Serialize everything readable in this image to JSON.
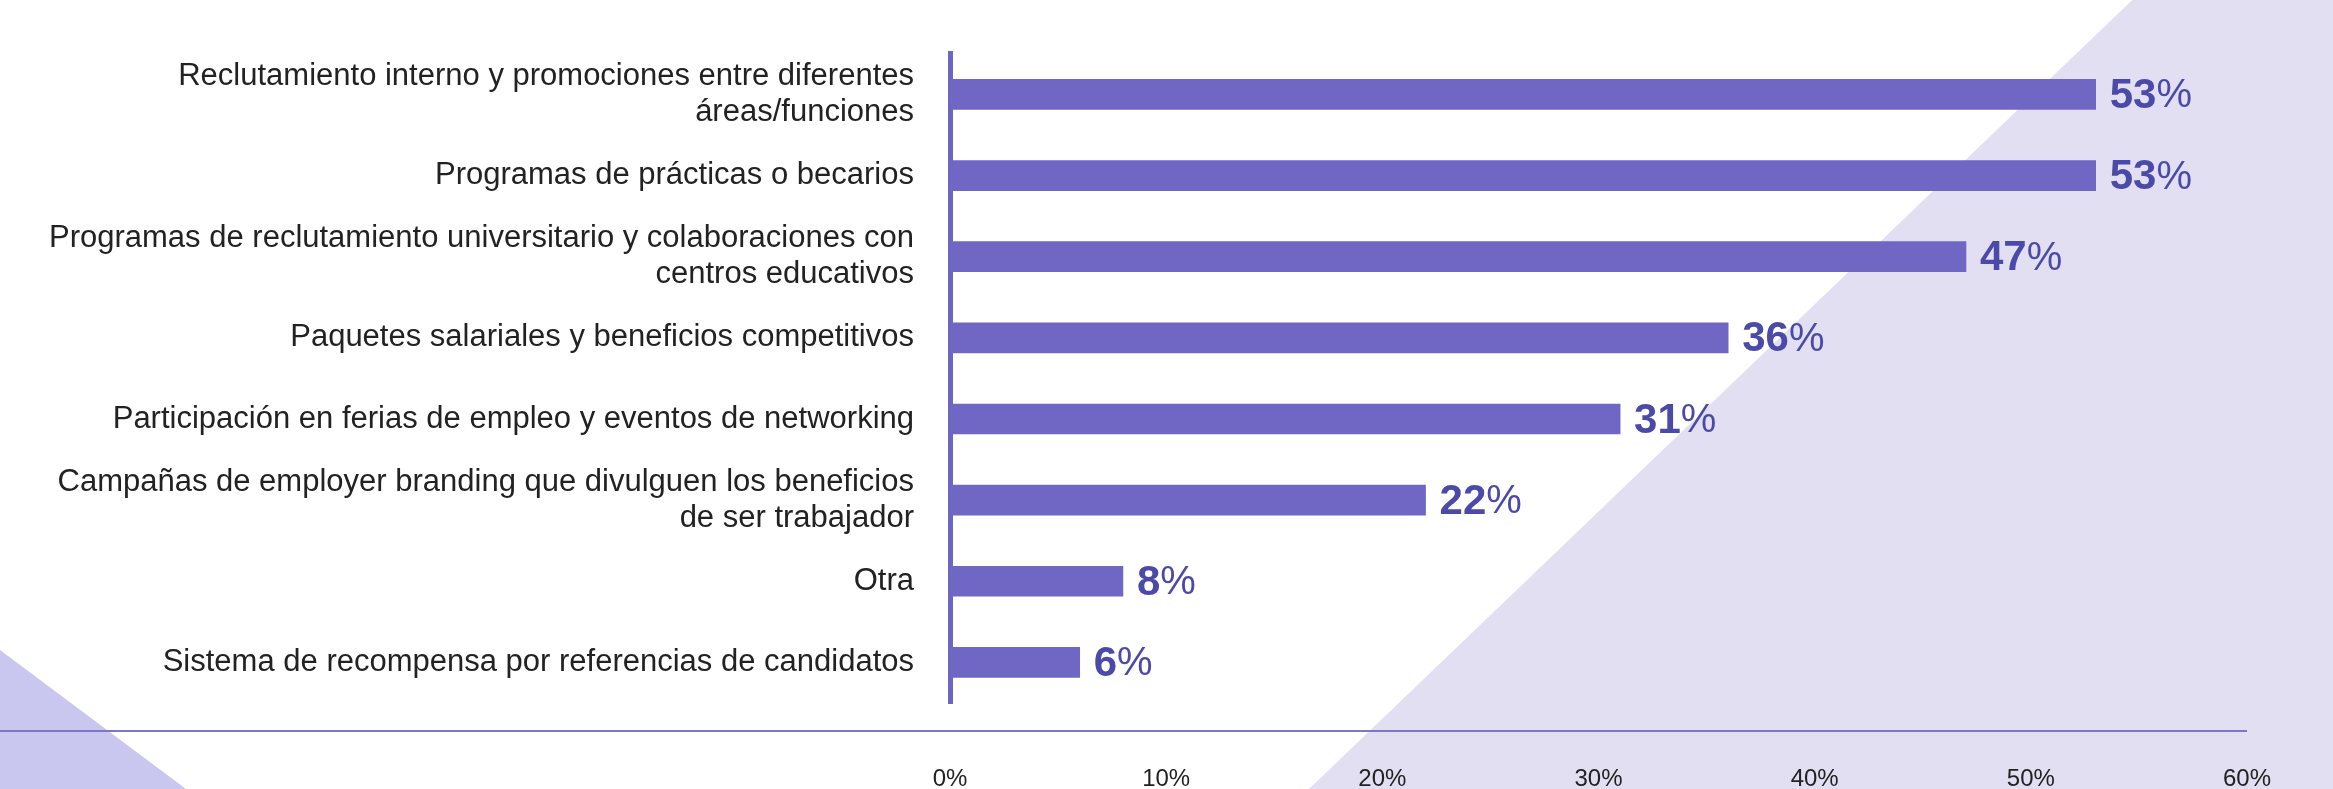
{
  "chart_data": {
    "type": "bar",
    "orientation": "horizontal",
    "categories": [
      "Reclutamiento interno y promociones entre diferentes áreas/funciones",
      "Programas de prácticas o becarios",
      "Programas de reclutamiento universitario y colaboraciones con centros educativos",
      "Paquetes salariales y beneficios competitivos",
      "Participación en ferias de empleo y eventos de networking",
      "Campañas de employer branding que divulguen los beneficios de ser trabajador",
      "Otra",
      "Sistema de recompensa por referencias de candidatos"
    ],
    "values": [
      53,
      53,
      47,
      36,
      31,
      22,
      8,
      6
    ],
    "value_labels": [
      "53%",
      "53%",
      "47%",
      "36%",
      "31%",
      "22%",
      "8%",
      "6%"
    ],
    "color": "#7066c4",
    "xlim": [
      0,
      60
    ],
    "xticks": [
      {
        "value": 0,
        "label": "0%"
      },
      {
        "value": 10,
        "label": "10%"
      },
      {
        "value": 20,
        "label": "20%"
      },
      {
        "value": 30,
        "label": "30%"
      },
      {
        "value": 40,
        "label": "40%"
      },
      {
        "value": 50,
        "label": "50%"
      },
      {
        "value": 60,
        "label": "60%"
      }
    ],
    "grid": false,
    "legend": false
  }
}
